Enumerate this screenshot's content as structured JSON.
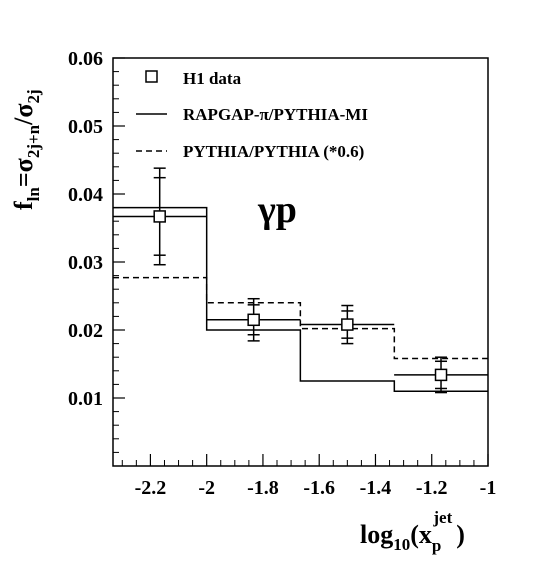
{
  "chart_data": {
    "type": "line",
    "xlabel": {
      "base": "log",
      "sub": "10",
      "paren_open": "(x",
      "x_sub": "p",
      "x_sup": "jet",
      "paren_close": ")"
    },
    "ylabel": {
      "f": "f",
      "f_sub": "ln",
      "eq": "=σ",
      "num_sub": "2j+n",
      "slash": "/σ",
      "den_sub": "2j"
    },
    "annotation": "γp",
    "xlim": [
      -2.333,
      -1.0
    ],
    "ylim": [
      0.0,
      0.06
    ],
    "x_ticks": [
      -2.2,
      -2,
      -1.8,
      -1.6,
      -1.4,
      -1.2,
      -1
    ],
    "x_tick_labels": [
      "-2.2",
      "-2",
      "-1.8",
      "-1.6",
      "-1.4",
      "-1.2",
      "-1"
    ],
    "y_ticks": [
      0.01,
      0.02,
      0.03,
      0.04,
      0.05,
      0.06
    ],
    "y_tick_labels": [
      "0.01",
      "0.02",
      "0.03",
      "0.04",
      "0.05",
      "0.06"
    ],
    "bin_edges": [
      -2.333,
      -2.0,
      -1.667,
      -1.333,
      -1.0
    ],
    "legend": [
      {
        "label": "H1 data",
        "style": "marker"
      },
      {
        "label": "RAPGAP-π/PYTHIA-MI",
        "style": "solid"
      },
      {
        "label": "PYTHIA/PYTHIA (*0.6)",
        "style": "dashed"
      }
    ],
    "series": [
      {
        "name": "H1 data",
        "style": "marker",
        "x": [
          -2.167,
          -1.833,
          -1.5,
          -1.167
        ],
        "y": [
          0.0367,
          0.0215,
          0.0208,
          0.0134
        ],
        "stat_err": [
          0.0057,
          0.0022,
          0.002,
          0.002
        ],
        "tot_err": [
          0.0071,
          0.0031,
          0.0028,
          0.0026
        ],
        "xerr": [
          0.1667,
          0.1667,
          0.1667,
          0.1667
        ]
      },
      {
        "name": "RAPGAP-π/PYTHIA-MI",
        "style": "solid",
        "values": [
          0.038,
          0.02,
          0.0125,
          0.011
        ]
      },
      {
        "name": "PYTHIA/PYTHIA (*0.6)",
        "style": "dashed",
        "values": [
          0.0277,
          0.024,
          0.0202,
          0.0158
        ]
      }
    ]
  }
}
